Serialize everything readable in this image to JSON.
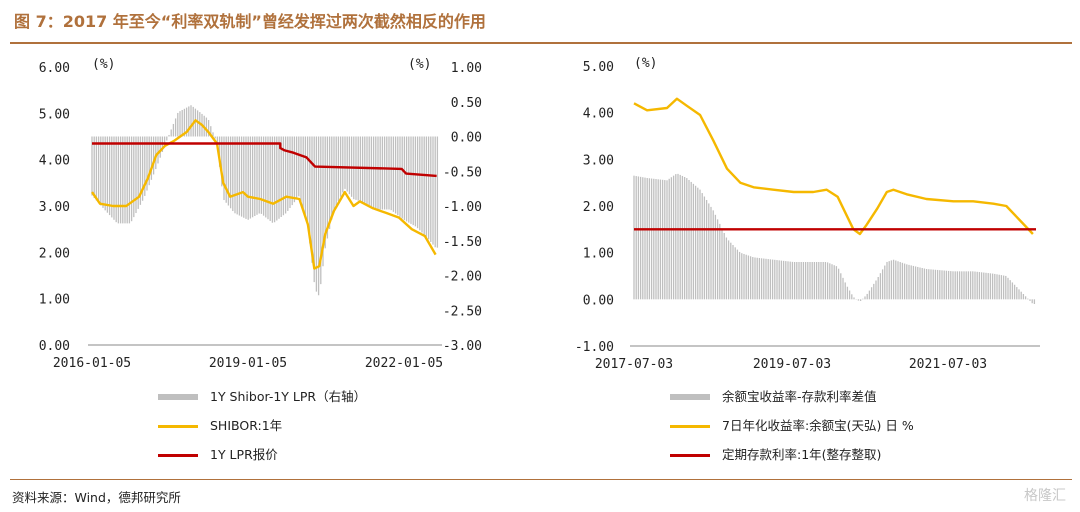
{
  "header": {
    "title": "图 7：2017 年至今“利率双轨制”曾经发挥过两次截然相反的作用"
  },
  "footer": {
    "source": "资料来源：Wind，德邦研究所",
    "watermark": "格隆汇"
  },
  "colors": {
    "brand": "#b0713c",
    "bar": "#bfbfbf",
    "yellow": "#f5b800",
    "red": "#c00000"
  },
  "chart_data": [
    {
      "type": "line",
      "id": "left",
      "left_unit": "(%)",
      "right_unit": "(%)",
      "yticks_left": [
        "6.00",
        "5.00",
        "4.00",
        "3.00",
        "2.00",
        "1.00",
        "0.00"
      ],
      "yticks_right": [
        "1.00",
        "0.50",
        "0.00",
        "-0.50",
        "-1.00",
        "-1.50",
        "-2.00",
        "-2.50",
        "-3.00"
      ],
      "ylim_left": [
        0,
        6
      ],
      "ylim_right": [
        -3,
        1
      ],
      "xticks": [
        "2016-01-05",
        "2019-01-05",
        "2022-01-05"
      ],
      "x_range": [
        "2016-01-05",
        "2022-09-01"
      ],
      "series": [
        {
          "name": "1Y Shibor-1Y LPR（右轴）",
          "kind": "bar",
          "axis": "right",
          "color": "#bfbfbf",
          "points": [
            [
              "2016-01-05",
              -0.85
            ],
            [
              "2016-04-01",
              -1.05
            ],
            [
              "2016-07-01",
              -1.25
            ],
            [
              "2016-10-01",
              -1.25
            ],
            [
              "2017-01-01",
              -0.9
            ],
            [
              "2017-04-01",
              -0.45
            ],
            [
              "2017-06-15",
              -0.05
            ],
            [
              "2017-09-01",
              0.35
            ],
            [
              "2017-12-01",
              0.45
            ],
            [
              "2018-02-01",
              0.35
            ],
            [
              "2018-04-01",
              0.25
            ],
            [
              "2018-06-01",
              -0.1
            ],
            [
              "2018-07-15",
              -0.9
            ],
            [
              "2018-10-01",
              -1.1
            ],
            [
              "2019-01-05",
              -1.2
            ],
            [
              "2019-04-01",
              -1.1
            ],
            [
              "2019-07-01",
              -1.25
            ],
            [
              "2019-10-01",
              -1.1
            ],
            [
              "2020-01-01",
              -0.85
            ],
            [
              "2020-03-01",
              -1.3
            ],
            [
              "2020-04-20",
              -2.2
            ],
            [
              "2020-05-20",
              -2.3
            ],
            [
              "2020-07-01",
              -1.6
            ],
            [
              "2020-09-01",
              -1.05
            ],
            [
              "2020-11-15",
              -0.75
            ],
            [
              "2021-01-15",
              -0.9
            ],
            [
              "2021-04-01",
              -0.95
            ],
            [
              "2021-07-01",
              -1.05
            ],
            [
              "2021-10-01",
              -1.05
            ],
            [
              "2022-01-05",
              -1.2
            ],
            [
              "2022-04-01",
              -1.3
            ],
            [
              "2022-06-15",
              -1.45
            ],
            [
              "2022-08-15",
              -1.6
            ]
          ]
        },
        {
          "name": "SHIBOR:1年",
          "kind": "line",
          "axis": "left",
          "color": "#f5b800",
          "points": [
            [
              "2016-01-05",
              3.3
            ],
            [
              "2016-03-01",
              3.05
            ],
            [
              "2016-06-01",
              3.0
            ],
            [
              "2016-09-01",
              3.0
            ],
            [
              "2016-12-01",
              3.2
            ],
            [
              "2017-02-01",
              3.6
            ],
            [
              "2017-04-01",
              4.1
            ],
            [
              "2017-06-01",
              4.3
            ],
            [
              "2017-08-01",
              4.4
            ],
            [
              "2017-11-01",
              4.6
            ],
            [
              "2018-01-01",
              4.85
            ],
            [
              "2018-02-15",
              4.75
            ],
            [
              "2018-04-01",
              4.6
            ],
            [
              "2018-06-01",
              4.35
            ],
            [
              "2018-07-15",
              3.5
            ],
            [
              "2018-09-01",
              3.2
            ],
            [
              "2018-12-01",
              3.3
            ],
            [
              "2019-01-05",
              3.2
            ],
            [
              "2019-04-01",
              3.15
            ],
            [
              "2019-07-01",
              3.05
            ],
            [
              "2019-10-01",
              3.2
            ],
            [
              "2020-01-01",
              3.15
            ],
            [
              "2020-03-01",
              2.6
            ],
            [
              "2020-04-15",
              1.65
            ],
            [
              "2020-05-20",
              1.7
            ],
            [
              "2020-07-01",
              2.4
            ],
            [
              "2020-09-01",
              2.9
            ],
            [
              "2020-11-15",
              3.3
            ],
            [
              "2021-01-15",
              3.0
            ],
            [
              "2021-03-01",
              3.1
            ],
            [
              "2021-06-01",
              2.95
            ],
            [
              "2021-09-01",
              2.85
            ],
            [
              "2021-12-01",
              2.75
            ],
            [
              "2022-03-01",
              2.5
            ],
            [
              "2022-06-01",
              2.35
            ],
            [
              "2022-08-15",
              1.95
            ]
          ]
        },
        {
          "name": "1Y LPR报价",
          "kind": "line",
          "axis": "left",
          "color": "#c00000",
          "points": [
            [
              "2016-01-05",
              4.35
            ],
            [
              "2019-08-20",
              4.35
            ],
            [
              "2019-08-20",
              4.25
            ],
            [
              "2019-09-20",
              4.2
            ],
            [
              "2019-11-20",
              4.15
            ],
            [
              "2020-02-20",
              4.05
            ],
            [
              "2020-04-20",
              3.85
            ],
            [
              "2021-12-20",
              3.8
            ],
            [
              "2022-01-20",
              3.7
            ],
            [
              "2022-08-22",
              3.65
            ]
          ]
        }
      ]
    },
    {
      "type": "line",
      "id": "right",
      "left_unit": "(%)",
      "yticks_left": [
        "5.00",
        "4.00",
        "3.00",
        "2.00",
        "1.00",
        "0.00",
        "-1.00"
      ],
      "ylim_left": [
        -1,
        5
      ],
      "xticks": [
        "2017-07-03",
        "2019-07-03",
        "2021-07-03"
      ],
      "x_range": [
        "2017-07-03",
        "2022-07-15"
      ],
      "series": [
        {
          "name": "余额宝收益率-存款利率差值",
          "kind": "bar",
          "axis": "left",
          "color": "#bfbfbf",
          "points": [
            [
              "2017-07-03",
              2.65
            ],
            [
              "2017-09-01",
              2.6
            ],
            [
              "2017-12-01",
              2.55
            ],
            [
              "2018-01-15",
              2.7
            ],
            [
              "2018-03-01",
              2.6
            ],
            [
              "2018-05-01",
              2.35
            ],
            [
              "2018-07-01",
              1.9
            ],
            [
              "2018-09-01",
              1.3
            ],
            [
              "2018-11-01",
              1.0
            ],
            [
              "2019-01-01",
              0.9
            ],
            [
              "2019-04-01",
              0.85
            ],
            [
              "2019-07-03",
              0.8
            ],
            [
              "2019-10-01",
              0.8
            ],
            [
              "2019-12-01",
              0.8
            ],
            [
              "2020-01-20",
              0.7
            ],
            [
              "2020-03-01",
              0.3
            ],
            [
              "2020-04-01",
              0.05
            ],
            [
              "2020-05-01",
              -0.05
            ],
            [
              "2020-06-01",
              0.1
            ],
            [
              "2020-07-20",
              0.45
            ],
            [
              "2020-09-01",
              0.8
            ],
            [
              "2020-10-01",
              0.85
            ],
            [
              "2020-12-01",
              0.75
            ],
            [
              "2021-03-01",
              0.65
            ],
            [
              "2021-07-03",
              0.6
            ],
            [
              "2021-10-01",
              0.6
            ],
            [
              "2022-01-01",
              0.55
            ],
            [
              "2022-03-01",
              0.5
            ],
            [
              "2022-05-01",
              0.2
            ],
            [
              "2022-07-01",
              -0.1
            ]
          ]
        },
        {
          "name": "7日年化收益率:余额宝(天弘) 日 %",
          "kind": "line",
          "axis": "left",
          "color": "#f5b800",
          "points": [
            [
              "2017-07-03",
              4.2
            ],
            [
              "2017-09-01",
              4.05
            ],
            [
              "2017-12-01",
              4.1
            ],
            [
              "2018-01-15",
              4.3
            ],
            [
              "2018-03-01",
              4.15
            ],
            [
              "2018-05-01",
              3.95
            ],
            [
              "2018-07-01",
              3.4
            ],
            [
              "2018-09-01",
              2.8
            ],
            [
              "2018-11-01",
              2.5
            ],
            [
              "2019-01-01",
              2.4
            ],
            [
              "2019-04-01",
              2.35
            ],
            [
              "2019-07-03",
              2.3
            ],
            [
              "2019-10-01",
              2.3
            ],
            [
              "2019-12-01",
              2.35
            ],
            [
              "2020-01-20",
              2.2
            ],
            [
              "2020-03-01",
              1.8
            ],
            [
              "2020-04-01",
              1.5
            ],
            [
              "2020-05-01",
              1.4
            ],
            [
              "2020-06-01",
              1.6
            ],
            [
              "2020-07-20",
              1.95
            ],
            [
              "2020-09-01",
              2.3
            ],
            [
              "2020-10-01",
              2.35
            ],
            [
              "2020-12-01",
              2.25
            ],
            [
              "2021-03-01",
              2.15
            ],
            [
              "2021-07-03",
              2.1
            ],
            [
              "2021-10-01",
              2.1
            ],
            [
              "2022-01-01",
              2.05
            ],
            [
              "2022-03-01",
              2.0
            ],
            [
              "2022-05-01",
              1.7
            ],
            [
              "2022-07-01",
              1.4
            ]
          ]
        },
        {
          "name": "定期存款利率:1年(整存整取)",
          "kind": "line",
          "axis": "left",
          "color": "#c00000",
          "points": [
            [
              "2017-07-03",
              1.5
            ],
            [
              "2022-07-15",
              1.5
            ]
          ]
        }
      ]
    }
  ]
}
